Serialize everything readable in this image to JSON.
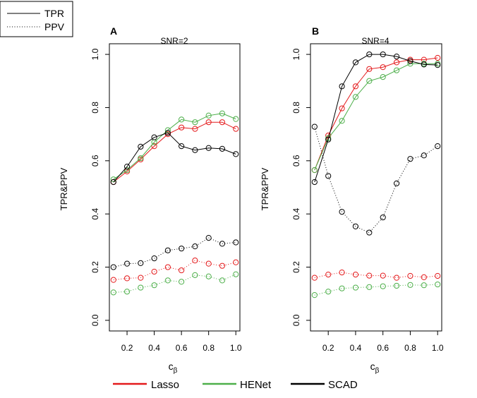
{
  "line_legend": [
    {
      "label": "TPR",
      "style": "solid"
    },
    {
      "label": "PPV",
      "style": "dotted"
    }
  ],
  "method_legend": [
    {
      "label": "Lasso",
      "color": "#e41a1c"
    },
    {
      "label": "HENet",
      "color": "#4daf4a"
    },
    {
      "label": "SCAD",
      "color": "#000000"
    }
  ],
  "chart_data": [
    {
      "type": "line",
      "panel_label": "A",
      "title": "SNR=2",
      "xlabel": "c",
      "xlabel_sub": "β",
      "ylabel": "TPR&PPV",
      "xlim": [
        0.1,
        1.0
      ],
      "ylim": [
        0,
        1
      ],
      "x": [
        0.1,
        0.2,
        0.3,
        0.4,
        0.5,
        0.6,
        0.7,
        0.8,
        0.9,
        1.0
      ],
      "x_ticks": [
        "0.2",
        "0.4",
        "0.6",
        "0.8",
        "1.0"
      ],
      "y_ticks": [
        "0.0",
        "0.2",
        "0.4",
        "0.6",
        "0.8",
        "1.0"
      ],
      "grid": false,
      "series": [
        {
          "name": "Lasso",
          "metric": "TPR",
          "color": "#e41a1c",
          "values": [
            0.52,
            0.56,
            0.605,
            0.655,
            0.7,
            0.725,
            0.72,
            0.745,
            0.745,
            0.72
          ]
        },
        {
          "name": "HENet",
          "metric": "TPR",
          "color": "#4daf4a",
          "values": [
            0.53,
            0.565,
            0.61,
            0.67,
            0.715,
            0.755,
            0.745,
            0.77,
            0.778,
            0.757
          ]
        },
        {
          "name": "SCAD",
          "metric": "TPR",
          "color": "#000000",
          "values": [
            0.52,
            0.578,
            0.653,
            0.688,
            0.705,
            0.655,
            0.64,
            0.648,
            0.645,
            0.625
          ]
        },
        {
          "name": "Lasso",
          "metric": "PPV",
          "color": "#e41a1c",
          "values": [
            0.152,
            0.158,
            0.16,
            0.183,
            0.2,
            0.188,
            0.225,
            0.213,
            0.205,
            0.218
          ]
        },
        {
          "name": "HENet",
          "metric": "PPV",
          "color": "#4daf4a",
          "values": [
            0.105,
            0.108,
            0.123,
            0.132,
            0.15,
            0.145,
            0.17,
            0.165,
            0.15,
            0.173
          ]
        },
        {
          "name": "SCAD",
          "metric": "PPV",
          "color": "#000000",
          "values": [
            0.2,
            0.213,
            0.215,
            0.233,
            0.263,
            0.27,
            0.278,
            0.31,
            0.288,
            0.293
          ]
        }
      ]
    },
    {
      "type": "line",
      "panel_label": "B",
      "title": "SNR=4",
      "xlabel": "c",
      "xlabel_sub": "β",
      "ylabel": "TPR&PPV",
      "xlim": [
        0.1,
        1.0
      ],
      "ylim": [
        0,
        1
      ],
      "x": [
        0.1,
        0.2,
        0.3,
        0.4,
        0.5,
        0.6,
        0.7,
        0.8,
        0.9,
        1.0
      ],
      "x_ticks": [
        "0.2",
        "0.4",
        "0.6",
        "0.8",
        "1.0"
      ],
      "y_ticks": [
        "0.0",
        "0.2",
        "0.4",
        "0.6",
        "0.8",
        "1.0"
      ],
      "grid": false,
      "series": [
        {
          "name": "Lasso",
          "metric": "TPR",
          "color": "#e41a1c",
          "values": [
            0.565,
            0.695,
            0.797,
            0.88,
            0.945,
            0.952,
            0.97,
            0.98,
            0.98,
            0.987
          ]
        },
        {
          "name": "HENet",
          "metric": "TPR",
          "color": "#4daf4a",
          "values": [
            0.565,
            0.685,
            0.75,
            0.84,
            0.9,
            0.915,
            0.94,
            0.965,
            0.965,
            0.965
          ]
        },
        {
          "name": "SCAD",
          "metric": "TPR",
          "color": "#000000",
          "values": [
            0.52,
            0.68,
            0.88,
            0.97,
            1.0,
            1.0,
            0.992,
            0.975,
            0.962,
            0.96
          ]
        },
        {
          "name": "Lasso",
          "metric": "PPV",
          "color": "#e41a1c",
          "values": [
            0.16,
            0.172,
            0.18,
            0.172,
            0.168,
            0.168,
            0.16,
            0.167,
            0.162,
            0.167
          ]
        },
        {
          "name": "HENet",
          "metric": "PPV",
          "color": "#4daf4a",
          "values": [
            0.095,
            0.108,
            0.12,
            0.123,
            0.125,
            0.128,
            0.13,
            0.133,
            0.132,
            0.135
          ]
        },
        {
          "name": "SCAD",
          "metric": "PPV",
          "color": "#000000",
          "values": [
            0.728,
            0.543,
            0.408,
            0.353,
            0.33,
            0.387,
            0.515,
            0.607,
            0.62,
            0.655
          ]
        }
      ]
    }
  ]
}
